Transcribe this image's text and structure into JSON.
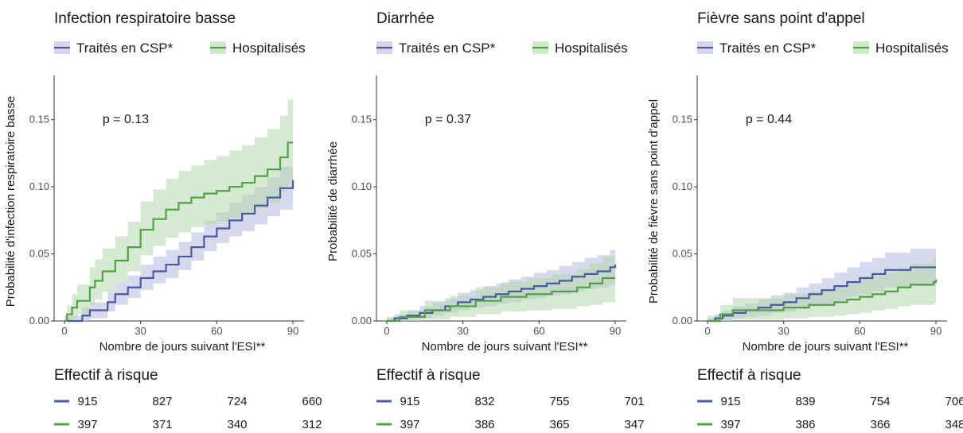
{
  "colors": {
    "blue": "#4a5a9c",
    "blue_fill": "#b7bcdf",
    "green": "#53a046",
    "green_fill": "#b5d7ad"
  },
  "chart_data": [
    {
      "type": "line",
      "title": "Infection respiratoire basse",
      "xlabel": "Nombre de jours suivant l'ESI**",
      "ylabel": "Probabilité d'infection respiratoire basse",
      "xlim": [
        0,
        90
      ],
      "ylim": [
        0,
        0.17
      ],
      "xticks": [
        0,
        30,
        60,
        90
      ],
      "yticks": [
        "0.00",
        "0.05",
        "0.10",
        "0.15"
      ],
      "annotation": "p = 0.13",
      "risk_table_title": "Effectif à risque",
      "series": [
        {
          "name": "Traités en CSP*",
          "color": "blue",
          "x": [
            0,
            7,
            10,
            17,
            20,
            25,
            30,
            35,
            40,
            45,
            50,
            55,
            60,
            65,
            70,
            75,
            80,
            85,
            90
          ],
          "y": [
            0,
            0.004,
            0.008,
            0.014,
            0.02,
            0.025,
            0.032,
            0.037,
            0.042,
            0.048,
            0.055,
            0.063,
            0.069,
            0.075,
            0.08,
            0.086,
            0.092,
            0.099,
            0.105
          ],
          "lower": [
            0,
            0,
            0.002,
            0.007,
            0.012,
            0.017,
            0.023,
            0.028,
            0.032,
            0.038,
            0.045,
            0.052,
            0.058,
            0.063,
            0.067,
            0.072,
            0.078,
            0.083,
            0.088
          ],
          "upper": [
            0.004,
            0.01,
            0.014,
            0.022,
            0.029,
            0.034,
            0.042,
            0.048,
            0.053,
            0.059,
            0.066,
            0.075,
            0.081,
            0.088,
            0.094,
            0.1,
            0.107,
            0.115,
            0.122
          ],
          "at_risk": [
            "915",
            "827",
            "724",
            "660"
          ]
        },
        {
          "name": "Hospitalisés",
          "color": "green",
          "x": [
            0,
            1,
            3,
            5,
            10,
            12,
            15,
            20,
            25,
            30,
            35,
            40,
            45,
            50,
            55,
            60,
            65,
            70,
            75,
            80,
            85,
            88,
            90
          ],
          "y": [
            0,
            0.005,
            0.01,
            0.015,
            0.025,
            0.03,
            0.037,
            0.045,
            0.055,
            0.068,
            0.076,
            0.083,
            0.088,
            0.092,
            0.095,
            0.097,
            0.1,
            0.103,
            0.108,
            0.113,
            0.122,
            0.133,
            0.133
          ],
          "lower": [
            0,
            0,
            0.002,
            0.005,
            0.012,
            0.016,
            0.022,
            0.029,
            0.037,
            0.049,
            0.056,
            0.062,
            0.066,
            0.07,
            0.072,
            0.074,
            0.077,
            0.08,
            0.084,
            0.088,
            0.096,
            0.105,
            0.105
          ],
          "upper": [
            0,
            0.012,
            0.02,
            0.027,
            0.04,
            0.046,
            0.054,
            0.063,
            0.074,
            0.089,
            0.098,
            0.106,
            0.112,
            0.116,
            0.12,
            0.123,
            0.127,
            0.131,
            0.137,
            0.143,
            0.153,
            0.165,
            0.165
          ],
          "at_risk": [
            "397",
            "371",
            "340",
            "312"
          ]
        }
      ]
    },
    {
      "type": "line",
      "title": "Diarrhée",
      "xlabel": "Nombre de jours suivant l'ESI**",
      "ylabel": "Probabilité de diarrhée",
      "xlim": [
        0,
        90
      ],
      "ylim": [
        0,
        0.17
      ],
      "xticks": [
        0,
        30,
        60,
        90
      ],
      "yticks": [
        "0.00",
        "0.05",
        "0.10",
        "0.15"
      ],
      "annotation": "p = 0.37",
      "risk_table_title": "Effectif à risque",
      "series": [
        {
          "name": "Traités en CSP*",
          "color": "blue",
          "x": [
            0,
            3,
            8,
            13,
            18,
            23,
            28,
            33,
            38,
            43,
            48,
            53,
            58,
            63,
            68,
            73,
            78,
            83,
            88,
            90
          ],
          "y": [
            0,
            0.002,
            0.004,
            0.006,
            0.008,
            0.011,
            0.014,
            0.016,
            0.018,
            0.02,
            0.022,
            0.024,
            0.026,
            0.028,
            0.03,
            0.033,
            0.035,
            0.037,
            0.04,
            0.042
          ],
          "lower": [
            0,
            0,
            0.001,
            0.002,
            0.004,
            0.006,
            0.008,
            0.01,
            0.011,
            0.013,
            0.014,
            0.016,
            0.017,
            0.019,
            0.02,
            0.022,
            0.024,
            0.025,
            0.027,
            0.028
          ],
          "upper": [
            0.002,
            0.005,
            0.008,
            0.011,
            0.014,
            0.017,
            0.021,
            0.023,
            0.026,
            0.028,
            0.031,
            0.033,
            0.036,
            0.038,
            0.041,
            0.044,
            0.047,
            0.049,
            0.053,
            0.055
          ],
          "at_risk": [
            "915",
            "832",
            "755",
            "701"
          ]
        },
        {
          "name": "Hospitalisés",
          "color": "green",
          "x": [
            0,
            5,
            15,
            25,
            35,
            45,
            55,
            65,
            75,
            80,
            85,
            90
          ],
          "y": [
            0,
            0.003,
            0.008,
            0.011,
            0.015,
            0.018,
            0.02,
            0.022,
            0.025,
            0.028,
            0.032,
            0.032
          ],
          "lower": [
            0,
            0,
            0.001,
            0.003,
            0.005,
            0.007,
            0.008,
            0.009,
            0.011,
            0.012,
            0.014,
            0.014
          ],
          "upper": [
            0.003,
            0.008,
            0.015,
            0.019,
            0.025,
            0.029,
            0.032,
            0.035,
            0.039,
            0.043,
            0.048,
            0.048
          ],
          "at_risk": [
            "397",
            "386",
            "365",
            "347"
          ]
        }
      ]
    },
    {
      "type": "line",
      "title": "Fièvre sans point d'appel",
      "xlabel": "Nombre de jours suivant l'ESI**",
      "ylabel": "Probabilité de fièvre sans point d'appel",
      "xlim": [
        0,
        90
      ],
      "ylim": [
        0,
        0.17
      ],
      "xticks": [
        0,
        30,
        60,
        90
      ],
      "yticks": [
        "0.00",
        "0.05",
        "0.10",
        "0.15"
      ],
      "annotation": "p = 0.44",
      "risk_table_title": "Effectif à risque",
      "series": [
        {
          "name": "Traités en CSP*",
          "color": "blue",
          "x": [
            0,
            3,
            6,
            10,
            15,
            20,
            25,
            30,
            35,
            40,
            45,
            50,
            55,
            60,
            65,
            70,
            80,
            90
          ],
          "y": [
            0,
            0.002,
            0.004,
            0.006,
            0.008,
            0.01,
            0.012,
            0.014,
            0.017,
            0.02,
            0.023,
            0.026,
            0.029,
            0.032,
            0.035,
            0.038,
            0.04,
            0.04
          ],
          "lower": [
            0,
            0,
            0.001,
            0.002,
            0.003,
            0.004,
            0.006,
            0.007,
            0.009,
            0.011,
            0.013,
            0.015,
            0.018,
            0.02,
            0.022,
            0.025,
            0.026,
            0.026
          ],
          "upper": [
            0.002,
            0.005,
            0.008,
            0.011,
            0.013,
            0.016,
            0.019,
            0.021,
            0.025,
            0.028,
            0.032,
            0.036,
            0.04,
            0.044,
            0.047,
            0.051,
            0.054,
            0.054
          ],
          "at_risk": [
            "915",
            "839",
            "754",
            "706"
          ]
        },
        {
          "name": "Hospitalisés",
          "color": "green",
          "x": [
            0,
            5,
            10,
            20,
            30,
            40,
            50,
            55,
            60,
            65,
            70,
            75,
            80,
            85,
            89,
            90
          ],
          "y": [
            0,
            0.005,
            0.008,
            0.008,
            0.01,
            0.012,
            0.014,
            0.016,
            0.018,
            0.02,
            0.022,
            0.025,
            0.027,
            0.027,
            0.029,
            0.031
          ],
          "lower": [
            0,
            0,
            0.001,
            0.001,
            0.002,
            0.003,
            0.004,
            0.005,
            0.006,
            0.008,
            0.009,
            0.011,
            0.012,
            0.012,
            0.013,
            0.014
          ],
          "upper": [
            0.004,
            0.012,
            0.017,
            0.017,
            0.02,
            0.022,
            0.025,
            0.028,
            0.031,
            0.034,
            0.036,
            0.04,
            0.043,
            0.043,
            0.046,
            0.049
          ],
          "at_risk": [
            "397",
            "386",
            "366",
            "348"
          ]
        }
      ]
    }
  ]
}
